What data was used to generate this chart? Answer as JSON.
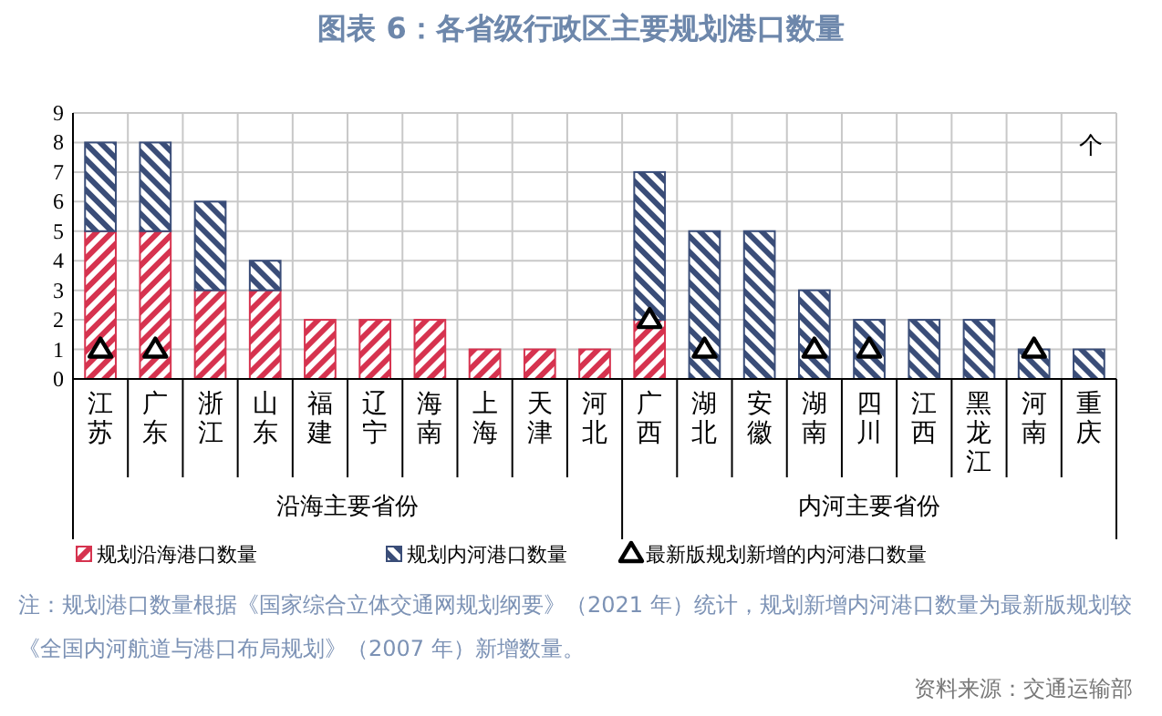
{
  "chart_data": {
    "type": "bar",
    "title": "图表 6：各省级行政区主要规划港口数量",
    "ylabel": "个",
    "categories": [
      "江苏",
      "广东",
      "浙江",
      "山东",
      "福建",
      "辽宁",
      "海南",
      "上海",
      "天津",
      "河北",
      "广西",
      "湖北",
      "安徽",
      "湖南",
      "四川",
      "江西",
      "黑龙江",
      "河南",
      "重庆"
    ],
    "stacked": true,
    "grid": true,
    "legend": "bottom",
    "ylim": [
      0,
      9
    ],
    "yticks": [
      0,
      1,
      2,
      3,
      4,
      5,
      6,
      7,
      8,
      9
    ],
    "series": [
      {
        "name": "规划沿海港口数量",
        "color": "#d6334f",
        "values": [
          5,
          5,
          3,
          3,
          2,
          2,
          2,
          1,
          1,
          1,
          2,
          0,
          0,
          0,
          0,
          0,
          0,
          0,
          0
        ]
      },
      {
        "name": "规划内河港口数量",
        "color": "#3a4d78",
        "values": [
          3,
          3,
          3,
          1,
          0,
          0,
          0,
          0,
          0,
          0,
          5,
          5,
          5,
          3,
          2,
          2,
          2,
          1,
          1
        ]
      },
      {
        "name": "最新版规划新增的内河港口数量",
        "type": "scatter",
        "marker": "triangle",
        "color": "#000000",
        "values": [
          1,
          1,
          null,
          null,
          null,
          null,
          null,
          null,
          null,
          null,
          2,
          1,
          null,
          1,
          1,
          null,
          null,
          1,
          null
        ]
      }
    ],
    "annotations": [
      "沿海主要省份",
      "内河主要省份",
      "注：规划港口数量根据《国家综合立体交通网规划纲要》（2021 年）统计，规划新增内河港口数量为最新版规划较《全国内河航道与港口布局规划》（2007 年）新增数量。",
      "资料来源：交通运输部"
    ]
  }
}
